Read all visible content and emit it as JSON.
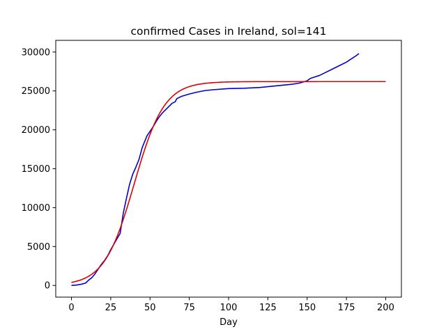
{
  "chart_data": {
    "type": "line",
    "title": "confirmed Cases in Ireland, sol=141",
    "xlabel": "Day",
    "ylabel": "",
    "xlim": [
      -10,
      210
    ],
    "ylim": [
      -1500,
      31500
    ],
    "xticks": [
      0,
      25,
      50,
      75,
      100,
      125,
      150,
      175,
      200
    ],
    "yticks": [
      0,
      5000,
      10000,
      15000,
      20000,
      25000,
      30000
    ],
    "grid": false,
    "series": [
      {
        "color": "#0000cc",
        "x": [
          0,
          3,
          6,
          9,
          11,
          13,
          15,
          17,
          19,
          21,
          23,
          25,
          27,
          29,
          31,
          32,
          33,
          35,
          37,
          39,
          41,
          43,
          45,
          46,
          48,
          50,
          52,
          54,
          56,
          58,
          60,
          62,
          64,
          66,
          67,
          70,
          75,
          80,
          85,
          90,
          100,
          110,
          120,
          125,
          130,
          135,
          140,
          145,
          150,
          152,
          155,
          158,
          160,
          165,
          170,
          175,
          178,
          181,
          183
        ],
        "y": [
          0,
          50,
          150,
          300,
          700,
          1000,
          1500,
          2100,
          2700,
          3200,
          3800,
          4600,
          5300,
          6000,
          6700,
          8000,
          9300,
          11200,
          13000,
          14300,
          15200,
          16200,
          17700,
          18200,
          19200,
          19800,
          20400,
          21100,
          21700,
          22200,
          22600,
          23000,
          23400,
          23600,
          24000,
          24300,
          24600,
          24850,
          25050,
          25150,
          25300,
          25350,
          25450,
          25550,
          25650,
          25750,
          25850,
          26000,
          26300,
          26600,
          26800,
          27000,
          27200,
          27700,
          28200,
          28700,
          29100,
          29500,
          29800
        ]
      },
      {
        "color": "#dd0000",
        "model": "logistic",
        "K": 26200,
        "r": 0.105,
        "t0": 40,
        "x_range": [
          0,
          200
        ]
      }
    ]
  }
}
